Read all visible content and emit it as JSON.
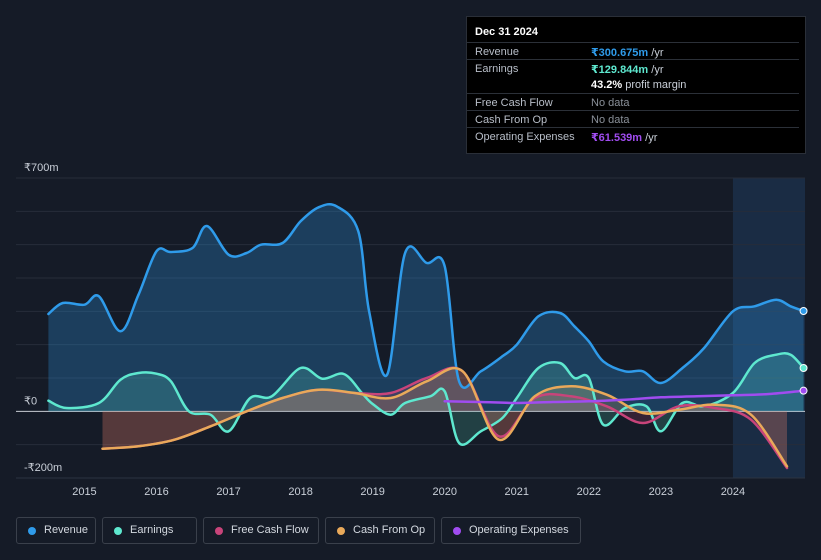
{
  "tooltip": {
    "date": "Dec 31 2024",
    "rows": [
      {
        "label": "Revenue",
        "value": "₹300.675m",
        "unit": " /yr",
        "color": "#2f9bea"
      },
      {
        "label": "Earnings",
        "value": "₹129.844m",
        "unit": " /yr",
        "color": "#5ee8cf"
      },
      {
        "label": "",
        "value": "43.2%",
        "unit": " profit margin",
        "color": "#ffffff"
      },
      {
        "label": "Free Cash Flow",
        "value": "No data",
        "unit": "",
        "color": "#7d838c"
      },
      {
        "label": "Cash From Op",
        "value": "No data",
        "unit": "",
        "color": "#7d838c"
      },
      {
        "label": "Operating Expenses",
        "value": "₹61.539m",
        "unit": " /yr",
        "color": "#a04cf0"
      }
    ]
  },
  "legend": [
    {
      "label": "Revenue",
      "color": "#2f9bea"
    },
    {
      "label": "Earnings",
      "color": "#5ee8cf"
    },
    {
      "label": "Free Cash Flow",
      "color": "#c8447a"
    },
    {
      "label": "Cash From Op",
      "color": "#e9a95a"
    },
    {
      "label": "Operating Expenses",
      "color": "#a04cf0"
    }
  ],
  "chart_data": {
    "type": "area",
    "title": "",
    "y_unit": "₹ millions",
    "ylim": [
      -200,
      700
    ],
    "y_tick_labels": [
      "₹700m",
      "₹0",
      "-₹200m"
    ],
    "y_tick_values": [
      700,
      0,
      -200
    ],
    "x_tick_labels": [
      "2015",
      "2016",
      "2017",
      "2018",
      "2019",
      "2020",
      "2021",
      "2022",
      "2023",
      "2024"
    ],
    "x_tick_values": [
      2015,
      2016,
      2017,
      2018,
      2019,
      2020,
      2021,
      2022,
      2023,
      2024
    ],
    "xlim": [
      2014.05,
      2025.0
    ],
    "highlight_from": 2024.0,
    "series": [
      {
        "name": "Revenue",
        "color": "#2f9bea",
        "x": [
          2014.5,
          2014.7,
          2015.0,
          2015.2,
          2015.5,
          2015.75,
          2016.0,
          2016.2,
          2016.5,
          2016.7,
          2017.0,
          2017.25,
          2017.45,
          2017.75,
          2018.0,
          2018.25,
          2018.5,
          2018.8,
          2018.95,
          2019.2,
          2019.45,
          2019.75,
          2020.0,
          2020.2,
          2020.5,
          2020.8,
          2021.0,
          2021.3,
          2021.6,
          2021.8,
          2022.0,
          2022.2,
          2022.5,
          2022.75,
          2023.0,
          2023.3,
          2023.6,
          2024.0,
          2024.3,
          2024.6,
          2024.8,
          2024.98
        ],
        "values": [
          292,
          325,
          320,
          345,
          240,
          350,
          480,
          478,
          490,
          556,
          470,
          475,
          500,
          505,
          570,
          612,
          615,
          540,
          300,
          110,
          475,
          445,
          435,
          90,
          120,
          165,
          200,
          285,
          295,
          255,
          210,
          150,
          120,
          120,
          85,
          130,
          190,
          300,
          315,
          335,
          315,
          301
        ]
      },
      {
        "name": "Earnings",
        "color": "#5ee8cf",
        "x": [
          2014.5,
          2014.75,
          2015.2,
          2015.5,
          2015.75,
          2016.0,
          2016.2,
          2016.45,
          2016.75,
          2017.0,
          2017.3,
          2017.6,
          2018.0,
          2018.3,
          2018.6,
          2018.85,
          2019.0,
          2019.25,
          2019.45,
          2019.8,
          2020.0,
          2020.2,
          2020.5,
          2020.8,
          2021.0,
          2021.3,
          2021.6,
          2021.8,
          2022.0,
          2022.2,
          2022.5,
          2022.8,
          2023.0,
          2023.3,
          2023.6,
          2024.0,
          2024.3,
          2024.6,
          2024.8,
          2024.98
        ],
        "values": [
          32,
          10,
          25,
          95,
          115,
          113,
          90,
          0,
          -10,
          -60,
          40,
          45,
          130,
          98,
          112,
          55,
          22,
          -10,
          25,
          45,
          60,
          -95,
          -60,
          -20,
          40,
          130,
          145,
          100,
          100,
          -40,
          10,
          15,
          -60,
          25,
          15,
          55,
          145,
          170,
          170,
          130
        ]
      },
      {
        "name": "Free Cash Flow",
        "color": "#c8447a",
        "x": [
          2015.25,
          2015.75,
          2016.25,
          2016.75,
          2017.25,
          2017.75,
          2018.25,
          2018.75,
          2019.25,
          2019.75,
          2020.25,
          2020.75,
          2021.25,
          2021.75,
          2022.25,
          2022.75,
          2023.25,
          2023.75,
          2024.25,
          2024.75
        ],
        "values": [
          -112,
          -105,
          -85,
          -45,
          0,
          40,
          65,
          55,
          55,
          100,
          120,
          -75,
          40,
          45,
          15,
          -35,
          15,
          10,
          -25,
          -170
        ]
      },
      {
        "name": "Cash From Op",
        "color": "#e9a95a",
        "x": [
          2015.25,
          2015.75,
          2016.25,
          2016.75,
          2017.25,
          2017.75,
          2018.25,
          2018.75,
          2019.25,
          2019.75,
          2020.25,
          2020.75,
          2021.25,
          2021.75,
          2022.25,
          2022.75,
          2023.25,
          2023.75,
          2024.25,
          2024.75
        ],
        "values": [
          -112,
          -105,
          -85,
          -45,
          0,
          40,
          65,
          55,
          40,
          90,
          120,
          -85,
          45,
          75,
          50,
          -5,
          5,
          20,
          -10,
          -165
        ]
      },
      {
        "name": "Operating Expenses",
        "color": "#a04cf0",
        "x": [
          2020.0,
          2020.5,
          2021.0,
          2021.5,
          2022.0,
          2022.5,
          2023.0,
          2023.5,
          2024.0,
          2024.5,
          2024.98
        ],
        "values": [
          30,
          28,
          25,
          28,
          30,
          35,
          42,
          45,
          48,
          52,
          62
        ]
      }
    ]
  }
}
